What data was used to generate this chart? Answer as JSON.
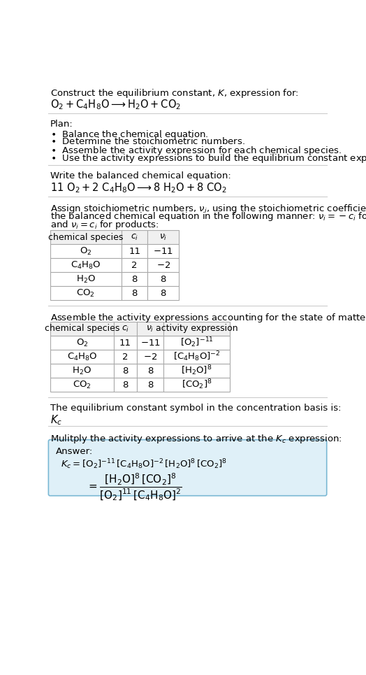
{
  "title_line1": "Construct the equilibrium constant, $K$, expression for:",
  "title_line2": "$\\mathrm{O_2 + C_4H_8O \\longrightarrow H_2O + CO_2}$",
  "plan_header": "Plan:",
  "plan_items": [
    "$\\bullet$  Balance the chemical equation.",
    "$\\bullet$  Determine the stoichiometric numbers.",
    "$\\bullet$  Assemble the activity expression for each chemical species.",
    "$\\bullet$  Use the activity expressions to build the equilibrium constant expression."
  ],
  "balanced_header": "Write the balanced chemical equation:",
  "balanced_eq": "$\\mathrm{11\\ O_2 + 2\\ C_4H_8O \\longrightarrow 8\\ H_2O + 8\\ CO_2}$",
  "stoich_intro_lines": [
    "Assign stoichiometric numbers, $\\nu_i$, using the stoichiometric coefficients, $c_i$, from",
    "the balanced chemical equation in the following manner: $\\nu_i = -c_i$ for reactants",
    "and $\\nu_i = c_i$ for products:"
  ],
  "table1_headers": [
    "chemical species",
    "$c_i$",
    "$\\nu_i$"
  ],
  "table1_rows": [
    [
      "$\\mathrm{O_2}$",
      "11",
      "$-$11"
    ],
    [
      "$\\mathrm{C_4H_8O}$",
      "2",
      "$-$2"
    ],
    [
      "$\\mathrm{H_2O}$",
      "8",
      "8"
    ],
    [
      "$\\mathrm{CO_2}$",
      "8",
      "8"
    ]
  ],
  "activity_intro": "Assemble the activity expressions accounting for the state of matter and $\\nu_i$:",
  "table2_headers": [
    "chemical species",
    "$c_i$",
    "$\\nu_i$",
    "activity expression"
  ],
  "table2_rows": [
    [
      "$\\mathrm{O_2}$",
      "11",
      "$-$11",
      "$[\\mathrm{O_2}]^{-11}$"
    ],
    [
      "$\\mathrm{C_4H_8O}$",
      "2",
      "$-$2",
      "$[\\mathrm{C_4H_8O}]^{-2}$"
    ],
    [
      "$\\mathrm{H_2O}$",
      "8",
      "8",
      "$[\\mathrm{H_2O}]^{8}$"
    ],
    [
      "$\\mathrm{CO_2}$",
      "8",
      "8",
      "$[\\mathrm{CO_2}]^{8}$"
    ]
  ],
  "kc_symbol_text": "The equilibrium constant symbol in the concentration basis is:",
  "kc_symbol": "$K_c$",
  "multiply_text": "Mulitply the activity expressions to arrive at the $K_c$ expression:",
  "answer_label": "Answer:",
  "kc_expr_line1": "$K_c = [\\mathrm{O_2}]^{-11}\\, [\\mathrm{C_4H_8O}]^{-2}\\, [\\mathrm{H_2O}]^{8}\\, [\\mathrm{CO_2}]^{8}$",
  "kc_expr_eq": "$= \\dfrac{[\\mathrm{H_2O}]^{8}\\, [\\mathrm{CO_2}]^{8}}{[\\mathrm{O_2}]^{11}\\, [\\mathrm{C_4H_8O}]^{2}}$",
  "bg_color": "#ffffff",
  "table_border_color": "#aaaaaa",
  "text_color": "#000000",
  "font_size": 9.5
}
